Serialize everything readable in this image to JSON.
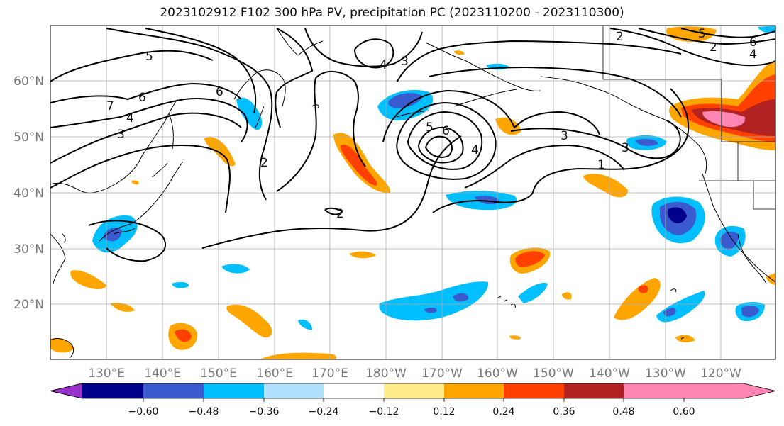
{
  "title": "2023102912 F102 300 hPa PV, precipitation PC (2023110200 - 2023110300)",
  "lon_labels": [
    "130°E",
    "140°E",
    "150°E",
    "160°E",
    "170°E",
    "180°W",
    "170°W",
    "160°W",
    "150°W",
    "140°W",
    "130°W",
    "120°W"
  ],
  "lat_labels": [
    "60°N",
    "50°N",
    "40°N",
    "30°N",
    "20°N"
  ],
  "contour_labels": [
    "5",
    "7",
    "6",
    "4",
    "3",
    "6",
    "2",
    "4",
    "3",
    "2",
    "5",
    "6",
    "4",
    "3",
    "1",
    "2",
    "3",
    "6",
    "4",
    "2",
    "5"
  ],
  "colorbar": {
    "tick_labels": [
      "−0.60",
      "−0.48",
      "−0.36",
      "−0.24",
      "−0.12",
      "0.12",
      "0.24",
      "0.36",
      "0.48",
      "0.60"
    ],
    "colors": [
      "#9932cc",
      "#00008b",
      "#3a5bcf",
      "#00bfff",
      "#b0e2ff",
      "#ffffff",
      "#ffec8b",
      "#ffa500",
      "#ff4000",
      "#b22222",
      "#ff85b3"
    ],
    "extend": "both"
  },
  "anomaly_colors": {
    "pos1": "#ffec8b",
    "pos2": "#ffa500",
    "pos3": "#ff4000",
    "pos4": "#b22222",
    "pos5": "#ff85b3",
    "neg1": "#b0e2ff",
    "neg2": "#00bfff",
    "neg3": "#3a5bcf",
    "neg4": "#00008b"
  }
}
